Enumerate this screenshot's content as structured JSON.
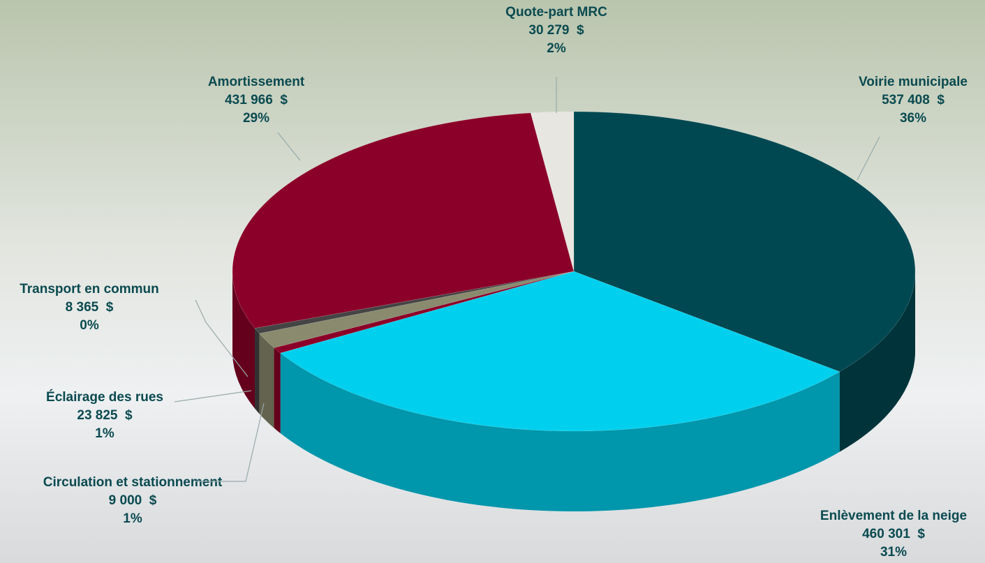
{
  "chart_data": {
    "type": "pie",
    "categories": [
      "Voirie municipale",
      "Enlèvement de la neige",
      "Circulation et stationnement",
      "Éclairage des rues",
      "Transport en commun",
      "Amortissement",
      "Quote-part MRC"
    ],
    "values": [
      537408,
      460301,
      9000,
      23825,
      8365,
      431966,
      30279
    ],
    "value_labels": [
      "537 408  $",
      "460 301  $",
      "9 000  $",
      "23 825  $",
      "8 365  $",
      "431 966  $",
      "30 279  $"
    ],
    "percent_labels": [
      "36%",
      "31%",
      "1%",
      "1%",
      "0%",
      "29%",
      "2%"
    ],
    "colors": [
      "#004851",
      "#00d0ee",
      "#8b0028",
      "#8a8a6e",
      "#444444",
      "#8b0028",
      "#e8e6e0"
    ]
  }
}
